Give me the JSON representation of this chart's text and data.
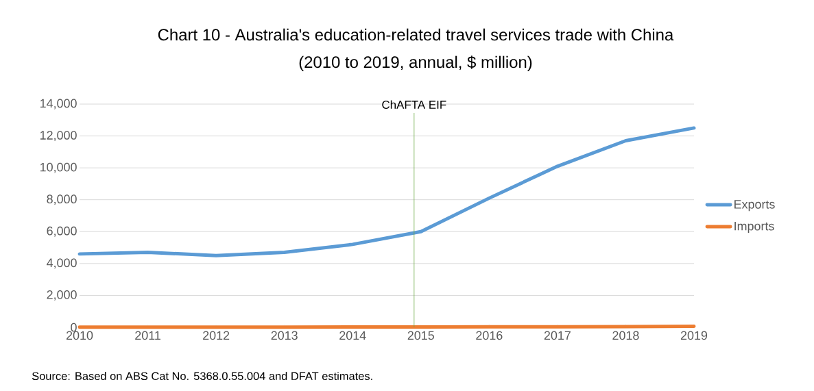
{
  "chart_data": {
    "type": "line",
    "title": "Chart 10 - Australia's education-related travel services trade with China",
    "subtitle": "(2010 to 2019, annual, $ million)",
    "x": [
      2010,
      2011,
      2012,
      2013,
      2014,
      2015,
      2016,
      2017,
      2018,
      2019
    ],
    "series": [
      {
        "name": "Exports",
        "color": "#5b9bd5",
        "values": [
          4600,
          4700,
          4500,
          4700,
          5200,
          6000,
          8100,
          10100,
          11700,
          12500
        ]
      },
      {
        "name": "Imports",
        "color": "#ed7d31",
        "values": [
          10,
          10,
          10,
          10,
          20,
          20,
          30,
          30,
          40,
          60
        ]
      }
    ],
    "xlim": [
      2010,
      2019
    ],
    "xticks": [
      {
        "value": 2010,
        "label": "2010"
      },
      {
        "value": 2011,
        "label": "2011"
      },
      {
        "value": 2012,
        "label": "2012"
      },
      {
        "value": 2013,
        "label": "2013"
      },
      {
        "value": 2014,
        "label": "2014"
      },
      {
        "value": 2015,
        "label": "2015"
      },
      {
        "value": 2016,
        "label": "2016"
      },
      {
        "value": 2017,
        "label": "2017"
      },
      {
        "value": 2018,
        "label": "2018"
      },
      {
        "value": 2019,
        "label": "2019"
      }
    ],
    "ylim": [
      0,
      14000
    ],
    "yticks": [
      0,
      {
        "value": 2000,
        "label": "2,000"
      },
      {
        "value": 4000,
        "label": "4,000"
      },
      {
        "value": 6000,
        "label": "6,000"
      },
      {
        "value": 8000,
        "label": "8,000"
      },
      {
        "value": 10000,
        "label": "10,000"
      },
      {
        "value": 12000,
        "label": "12,000"
      },
      {
        "value": 14000,
        "label": "14,000"
      }
    ],
    "ref_lines": [
      {
        "axis": "x",
        "value": 2014.9,
        "label": "ChAFTA EIF",
        "color": "#70ad47"
      }
    ],
    "annotations": [
      "Source: Based on ABS Cat No. 5368.0.55.004 and DFAT estimates."
    ],
    "grid": "y",
    "legend": "right",
    "marker": "none",
    "line_style": "solid"
  }
}
